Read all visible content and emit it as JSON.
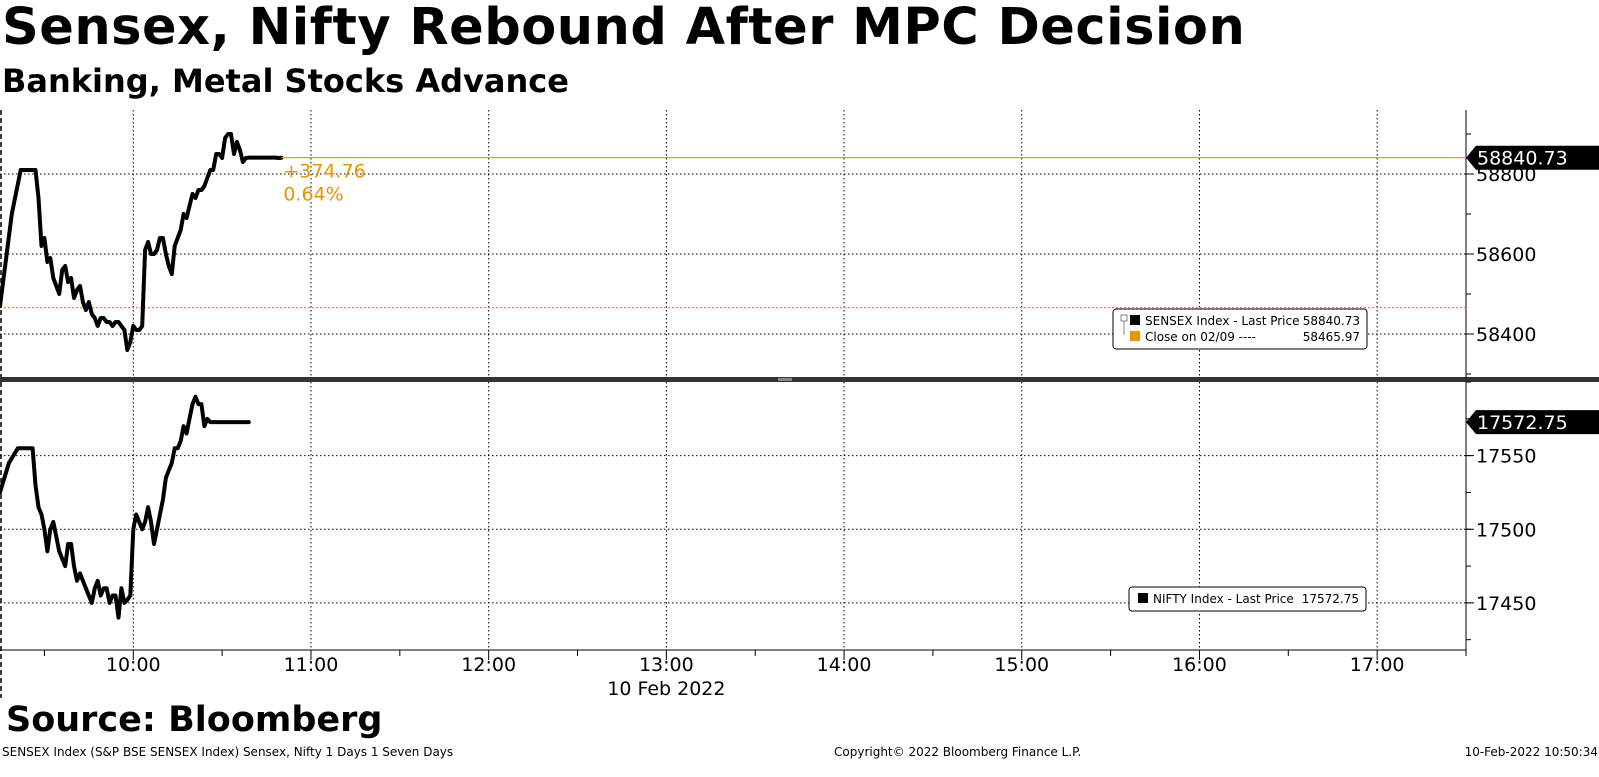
{
  "header": {
    "title": "Sensex, Nifty Rebound After MPC Decision",
    "subtitle": "Banking, Metal Stocks Advance"
  },
  "source": "Source: Bloomberg",
  "footer": {
    "left": "SENSEX Index (S&P BSE SENSEX Index) Sensex, Nifty 1 Days 1 Seven Days",
    "center": "Copyright© 2022 Bloomberg Finance L.P.",
    "right": "10-Feb-2022 10:50:34"
  },
  "colors": {
    "line": "#000000",
    "close": "#e69500",
    "grid": "#000000"
  },
  "chart_data": [
    {
      "type": "line",
      "panel": "top",
      "x_unit": "time",
      "x_ticks": [
        "10:00",
        "11:00",
        "12:00",
        "13:00",
        "14:00",
        "15:00",
        "16:00",
        "17:00"
      ],
      "x_date_label": "10 Feb 2022",
      "xlim": [
        "09:15",
        "17:30"
      ],
      "ylim": [
        58290,
        58960
      ],
      "y_ticks": [
        58400,
        58600,
        58800
      ],
      "grid": true,
      "last_price_label": "58840.73",
      "change_label": "+374.76",
      "change_pct_label": "0.64%",
      "close_value": 58465.97,
      "legend": {
        "position": "right",
        "entries": [
          {
            "name": "SENSEX Index - Last Price",
            "value": "58840.73",
            "color": "#000000"
          },
          {
            "name": "Close on 02/09 ----",
            "value": "58465.97",
            "color": "#e69500"
          }
        ]
      },
      "series": [
        {
          "name": "SENSEX Index - Last Price",
          "x": [
            "09:15",
            "09:19",
            "09:22",
            "09:25",
            "09:27",
            "09:28",
            "09:29",
            "09:30",
            "09:31",
            "09:32",
            "09:33",
            "09:34",
            "09:35",
            "09:36",
            "09:37",
            "09:38",
            "09:39",
            "09:40",
            "09:41",
            "09:42",
            "09:43",
            "09:44",
            "09:45",
            "09:46",
            "09:47",
            "09:48",
            "09:49",
            "09:50",
            "09:51",
            "09:52",
            "09:53",
            "09:54",
            "09:55",
            "09:56",
            "09:57",
            "09:58",
            "09:59",
            "10:00",
            "10:01",
            "10:02",
            "10:03",
            "10:04",
            "10:05",
            "10:06",
            "10:07",
            "10:08",
            "10:09",
            "10:10",
            "10:11",
            "10:12",
            "10:13",
            "10:14",
            "10:15",
            "10:16",
            "10:17",
            "10:18",
            "10:19",
            "10:20",
            "10:21",
            "10:22",
            "10:23",
            "10:24",
            "10:25",
            "10:26",
            "10:27",
            "10:28",
            "10:29",
            "10:30",
            "10:31",
            "10:32",
            "10:33",
            "10:34",
            "10:35",
            "10:36",
            "10:37",
            "10:38",
            "10:39",
            "10:40",
            "10:41",
            "10:42",
            "10:43",
            "10:44",
            "10:45",
            "10:46",
            "10:47",
            "10:48",
            "10:49",
            "10:50"
          ],
          "values": [
            58470,
            58700,
            58810,
            58810,
            58810,
            58740,
            58620,
            58640,
            58580,
            58590,
            58540,
            58520,
            58500,
            58560,
            58570,
            58530,
            58540,
            58490,
            58510,
            58520,
            58480,
            58460,
            58480,
            58450,
            58440,
            58420,
            58440,
            58440,
            58430,
            58430,
            58420,
            58430,
            58430,
            58420,
            58410,
            58360,
            58380,
            58420,
            58410,
            58410,
            58420,
            58610,
            58630,
            58600,
            58600,
            58610,
            58640,
            58640,
            58600,
            58570,
            58550,
            58620,
            58640,
            58660,
            58700,
            58690,
            58720,
            58750,
            58740,
            58760,
            58760,
            58770,
            58790,
            58810,
            58810,
            58850,
            58850,
            58840,
            58890,
            58900,
            58900,
            58850,
            58880,
            58860,
            58830,
            58840,
            58841,
            58841,
            58841,
            58841,
            58841,
            58841,
            58841,
            58841,
            58841,
            58841,
            58840,
            58840.73
          ]
        }
      ]
    },
    {
      "type": "line",
      "panel": "bottom",
      "ylim": [
        17418,
        17600
      ],
      "y_ticks": [
        17450,
        17500,
        17550
      ],
      "grid": true,
      "last_price_label": "17572.75",
      "legend": {
        "position": "right",
        "entries": [
          {
            "name": "NIFTY Index - Last Price",
            "value": "17572.75",
            "color": "#000000"
          }
        ]
      },
      "series": [
        {
          "name": "NIFTY Index - Last Price",
          "x": [
            "09:15",
            "09:18",
            "09:21",
            "09:24",
            "09:26",
            "09:27",
            "09:28",
            "09:29",
            "09:30",
            "09:31",
            "09:32",
            "09:33",
            "09:34",
            "09:35",
            "09:36",
            "09:37",
            "09:38",
            "09:39",
            "09:40",
            "09:41",
            "09:42",
            "09:43",
            "09:44",
            "09:45",
            "09:46",
            "09:47",
            "09:48",
            "09:49",
            "09:50",
            "09:51",
            "09:52",
            "09:53",
            "09:54",
            "09:55",
            "09:56",
            "09:57",
            "09:58",
            "09:59",
            "10:00",
            "10:01",
            "10:02",
            "10:03",
            "10:04",
            "10:05",
            "10:06",
            "10:07",
            "10:08",
            "10:09",
            "10:10",
            "10:11",
            "10:12",
            "10:13",
            "10:14",
            "10:15",
            "10:16",
            "10:17",
            "10:18",
            "10:19",
            "10:20",
            "10:21",
            "10:22",
            "10:23",
            "10:24",
            "10:25",
            "10:26",
            "10:27",
            "10:28",
            "10:29",
            "10:30",
            "10:31",
            "10:32",
            "10:33",
            "10:34",
            "10:35",
            "10:36",
            "10:37",
            "10:38",
            "10:39"
          ],
          "values": [
            17525,
            17545,
            17555,
            17555,
            17555,
            17530,
            17515,
            17510,
            17500,
            17485,
            17500,
            17505,
            17495,
            17485,
            17480,
            17475,
            17490,
            17490,
            17475,
            17465,
            17470,
            17465,
            17460,
            17455,
            17450,
            17460,
            17465,
            17455,
            17460,
            17460,
            17450,
            17455,
            17455,
            17440,
            17460,
            17450,
            17452,
            17455,
            17500,
            17510,
            17505,
            17500,
            17505,
            17515,
            17505,
            17490,
            17500,
            17510,
            17520,
            17535,
            17540,
            17545,
            17555,
            17555,
            17560,
            17570,
            17565,
            17575,
            17585,
            17590,
            17585,
            17585,
            17570,
            17575,
            17572.75,
            17572.75,
            17572.75,
            17572.75,
            17572.75,
            17572.75,
            17572.75,
            17572.75,
            17572.75,
            17572.75,
            17572.75,
            17572.75,
            17572.75,
            17572.75
          ]
        }
      ]
    }
  ]
}
